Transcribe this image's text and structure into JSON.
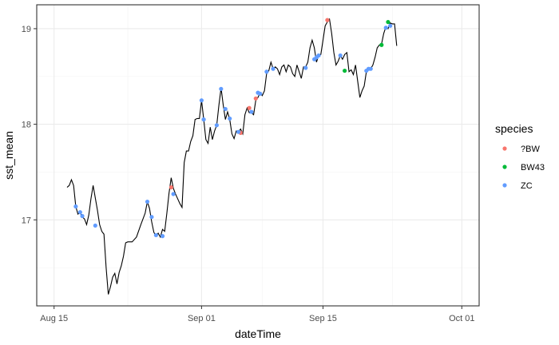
{
  "chart_data": {
    "type": "line",
    "xlabel": "dateTime",
    "ylabel": "sst_mean",
    "x_tick_labels": [
      "Aug 15",
      "Sep 01",
      "Sep 15",
      "Oct 01"
    ],
    "x_ticks": [
      "2023-08-15",
      "2023-09-01",
      "2023-09-15",
      "2023-10-01"
    ],
    "y_ticks": [
      17,
      18,
      19
    ],
    "y_tick_labels": [
      "17",
      "18",
      "19"
    ],
    "xlim": [
      "2023-08-13",
      "2023-10-03"
    ],
    "ylim": [
      16.1,
      19.25
    ],
    "grid": true,
    "legend": {
      "title": "species",
      "position": "right"
    },
    "line_series": {
      "color": "#000000",
      "points": [
        [
          "2023-08-16T12:00",
          17.34
        ],
        [
          "2023-08-16T18:00",
          17.36
        ],
        [
          "2023-08-17T00:00",
          17.42
        ],
        [
          "2023-08-17T06:00",
          17.36
        ],
        [
          "2023-08-17T12:00",
          17.14
        ],
        [
          "2023-08-17T18:00",
          17.06
        ],
        [
          "2023-08-18T00:00",
          17.08
        ],
        [
          "2023-08-18T06:00",
          17.03
        ],
        [
          "2023-08-18T12:00",
          17.01
        ],
        [
          "2023-08-18T18:00",
          16.95
        ],
        [
          "2023-08-19T00:00",
          17.05
        ],
        [
          "2023-08-19T06:00",
          17.22
        ],
        [
          "2023-08-19T12:00",
          17.36
        ],
        [
          "2023-08-19T18:00",
          17.23
        ],
        [
          "2023-08-20T00:00",
          17.1
        ],
        [
          "2023-08-20T06:00",
          16.95
        ],
        [
          "2023-08-20T12:00",
          16.88
        ],
        [
          "2023-08-20T18:00",
          16.85
        ],
        [
          "2023-08-21T00:00",
          16.5
        ],
        [
          "2023-08-21T06:00",
          16.22
        ],
        [
          "2023-08-21T12:00",
          16.3
        ],
        [
          "2023-08-21T18:00",
          16.4
        ],
        [
          "2023-08-22T00:00",
          16.44
        ],
        [
          "2023-08-22T06:00",
          16.33
        ],
        [
          "2023-08-22T12:00",
          16.45
        ],
        [
          "2023-08-22T18:00",
          16.52
        ],
        [
          "2023-08-23T00:00",
          16.62
        ],
        [
          "2023-08-23T06:00",
          16.76
        ],
        [
          "2023-08-23T12:00",
          16.77
        ],
        [
          "2023-08-24T00:00",
          16.77
        ],
        [
          "2023-08-24T12:00",
          16.82
        ],
        [
          "2023-08-25T00:00",
          16.95
        ],
        [
          "2023-08-25T12:00",
          17.07
        ],
        [
          "2023-08-25T18:00",
          17.19
        ],
        [
          "2023-08-26T00:00",
          17.12
        ],
        [
          "2023-08-26T06:00",
          16.98
        ],
        [
          "2023-08-26T12:00",
          16.87
        ],
        [
          "2023-08-26T18:00",
          16.83
        ],
        [
          "2023-08-27T00:00",
          16.86
        ],
        [
          "2023-08-27T06:00",
          16.82
        ],
        [
          "2023-08-27T12:00",
          16.9
        ],
        [
          "2023-08-27T18:00",
          16.88
        ],
        [
          "2023-08-28T00:00",
          17.07
        ],
        [
          "2023-08-28T06:00",
          17.28
        ],
        [
          "2023-08-28T12:00",
          17.44
        ],
        [
          "2023-08-28T18:00",
          17.33
        ],
        [
          "2023-08-29T00:00",
          17.27
        ],
        [
          "2023-08-29T06:00",
          17.22
        ],
        [
          "2023-08-29T12:00",
          17.17
        ],
        [
          "2023-08-29T18:00",
          17.13
        ],
        [
          "2023-08-30T00:00",
          17.6
        ],
        [
          "2023-08-30T06:00",
          17.72
        ],
        [
          "2023-08-30T12:00",
          17.72
        ],
        [
          "2023-08-30T18:00",
          17.82
        ],
        [
          "2023-08-31T00:00",
          17.88
        ],
        [
          "2023-08-31T06:00",
          18.05
        ],
        [
          "2023-08-31T12:00",
          18.06
        ],
        [
          "2023-08-31T18:00",
          18.06
        ],
        [
          "2023-09-01T00:00",
          18.25
        ],
        [
          "2023-09-01T06:00",
          18.05
        ],
        [
          "2023-09-01T12:00",
          17.84
        ],
        [
          "2023-09-01T18:00",
          17.8
        ],
        [
          "2023-09-02T00:00",
          17.97
        ],
        [
          "2023-09-02T06:00",
          17.84
        ],
        [
          "2023-09-02T12:00",
          17.93
        ],
        [
          "2023-09-02T18:00",
          17.99
        ],
        [
          "2023-09-03T00:00",
          18.2
        ],
        [
          "2023-09-03T06:00",
          18.38
        ],
        [
          "2023-09-03T12:00",
          18.2
        ],
        [
          "2023-09-03T18:00",
          18.05
        ],
        [
          "2023-09-04T00:00",
          18.13
        ],
        [
          "2023-09-04T06:00",
          18.05
        ],
        [
          "2023-09-04T12:00",
          17.9
        ],
        [
          "2023-09-04T18:00",
          17.85
        ],
        [
          "2023-09-05T00:00",
          17.93
        ],
        [
          "2023-09-05T06:00",
          17.92
        ],
        [
          "2023-09-05T12:00",
          17.95
        ],
        [
          "2023-09-05T18:00",
          17.9
        ],
        [
          "2023-09-06T00:00",
          18.1
        ],
        [
          "2023-09-06T06:00",
          18.17
        ],
        [
          "2023-09-06T12:00",
          18.12
        ],
        [
          "2023-09-06T18:00",
          18.12
        ],
        [
          "2023-09-07T00:00",
          18.1
        ],
        [
          "2023-09-07T06:00",
          18.25
        ],
        [
          "2023-09-07T12:00",
          18.28
        ],
        [
          "2023-09-07T18:00",
          18.33
        ],
        [
          "2023-09-08T00:00",
          18.3
        ],
        [
          "2023-09-08T06:00",
          18.35
        ],
        [
          "2023-09-08T12:00",
          18.53
        ],
        [
          "2023-09-08T18:00",
          18.56
        ],
        [
          "2023-09-09T00:00",
          18.65
        ],
        [
          "2023-09-09T06:00",
          18.58
        ],
        [
          "2023-09-09T12:00",
          18.6
        ],
        [
          "2023-09-09T18:00",
          18.58
        ],
        [
          "2023-09-10T00:00",
          18.52
        ],
        [
          "2023-09-10T06:00",
          18.6
        ],
        [
          "2023-09-10T12:00",
          18.62
        ],
        [
          "2023-09-10T18:00",
          18.55
        ],
        [
          "2023-09-11T00:00",
          18.62
        ],
        [
          "2023-09-11T06:00",
          18.6
        ],
        [
          "2023-09-11T12:00",
          18.53
        ],
        [
          "2023-09-11T18:00",
          18.5
        ],
        [
          "2023-09-12T00:00",
          18.62
        ],
        [
          "2023-09-12T06:00",
          18.55
        ],
        [
          "2023-09-12T12:00",
          18.48
        ],
        [
          "2023-09-12T18:00",
          18.6
        ],
        [
          "2023-09-13T00:00",
          18.6
        ],
        [
          "2023-09-13T06:00",
          18.65
        ],
        [
          "2023-09-13T12:00",
          18.8
        ],
        [
          "2023-09-13T18:00",
          18.88
        ],
        [
          "2023-09-14T00:00",
          18.8
        ],
        [
          "2023-09-14T06:00",
          18.65
        ],
        [
          "2023-09-14T12:00",
          18.72
        ],
        [
          "2023-09-14T18:00",
          18.73
        ],
        [
          "2023-09-15T00:00",
          18.88
        ],
        [
          "2023-09-15T06:00",
          19.03
        ],
        [
          "2023-09-15T12:00",
          19.07
        ],
        [
          "2023-09-15T18:00",
          19.1
        ],
        [
          "2023-09-16T00:00",
          18.95
        ],
        [
          "2023-09-16T06:00",
          18.75
        ],
        [
          "2023-09-16T12:00",
          18.62
        ],
        [
          "2023-09-16T18:00",
          18.66
        ],
        [
          "2023-09-17T00:00",
          18.72
        ],
        [
          "2023-09-17T06:00",
          18.68
        ],
        [
          "2023-09-17T12:00",
          18.73
        ],
        [
          "2023-09-17T18:00",
          18.75
        ],
        [
          "2023-09-18T00:00",
          18.55
        ],
        [
          "2023-09-18T06:00",
          18.57
        ],
        [
          "2023-09-18T12:00",
          18.52
        ],
        [
          "2023-09-18T18:00",
          18.62
        ],
        [
          "2023-09-19T00:00",
          18.45
        ],
        [
          "2023-09-19T06:00",
          18.28
        ],
        [
          "2023-09-19T12:00",
          18.35
        ],
        [
          "2023-09-19T18:00",
          18.4
        ],
        [
          "2023-09-20T00:00",
          18.55
        ],
        [
          "2023-09-20T06:00",
          18.58
        ],
        [
          "2023-09-20T12:00",
          18.58
        ],
        [
          "2023-09-20T18:00",
          18.62
        ],
        [
          "2023-09-21T00:00",
          18.7
        ],
        [
          "2023-09-21T06:00",
          18.8
        ],
        [
          "2023-09-21T12:00",
          18.83
        ],
        [
          "2023-09-21T18:00",
          18.84
        ],
        [
          "2023-09-22T00:00",
          18.95
        ],
        [
          "2023-09-22T06:00",
          19.02
        ],
        [
          "2023-09-22T12:00",
          19.0
        ],
        [
          "2023-09-22T18:00",
          19.06
        ],
        [
          "2023-09-23T00:00",
          19.05
        ],
        [
          "2023-09-23T06:00",
          19.05
        ],
        [
          "2023-09-23T12:00",
          18.82
        ]
      ]
    },
    "series": [
      {
        "name": "?BW",
        "color": "#F8766D",
        "points": [
          [
            "2023-08-28T12:00",
            17.34
          ],
          [
            "2023-09-05T12:00",
            17.91
          ],
          [
            "2023-09-06T12:00",
            18.17
          ],
          [
            "2023-09-07T06:00",
            18.27
          ],
          [
            "2023-09-15T12:00",
            19.09
          ]
        ]
      },
      {
        "name": "BW43",
        "color": "#00BA38",
        "points": [
          [
            "2023-09-17T12:00",
            18.56
          ],
          [
            "2023-09-21T18:00",
            18.83
          ],
          [
            "2023-09-22T12:00",
            19.07
          ]
        ]
      },
      {
        "name": "ZC",
        "color": "#619CFF",
        "points": [
          [
            "2023-08-17T12:00",
            17.14
          ],
          [
            "2023-08-18T00:00",
            17.08
          ],
          [
            "2023-08-18T06:00",
            17.04
          ],
          [
            "2023-08-19T18:00",
            16.94
          ],
          [
            "2023-08-25T18:00",
            17.19
          ],
          [
            "2023-08-26T06:00",
            17.03
          ],
          [
            "2023-08-26T18:00",
            16.84
          ],
          [
            "2023-08-27T12:00",
            16.83
          ],
          [
            "2023-08-28T18:00",
            17.27
          ],
          [
            "2023-09-01T00:00",
            18.25
          ],
          [
            "2023-09-01T06:00",
            18.05
          ],
          [
            "2023-09-02T18:00",
            17.99
          ],
          [
            "2023-09-03T06:00",
            18.37
          ],
          [
            "2023-09-03T18:00",
            18.16
          ],
          [
            "2023-09-04T06:00",
            18.06
          ],
          [
            "2023-09-05T06:00",
            17.92
          ],
          [
            "2023-09-06T18:00",
            18.13
          ],
          [
            "2023-09-07T12:00",
            18.33
          ],
          [
            "2023-09-07T18:00",
            18.32
          ],
          [
            "2023-09-08T12:00",
            18.55
          ],
          [
            "2023-09-09T06:00",
            18.58
          ],
          [
            "2023-09-13T00:00",
            18.59
          ],
          [
            "2023-09-14T00:00",
            18.68
          ],
          [
            "2023-09-14T06:00",
            18.7
          ],
          [
            "2023-09-14T12:00",
            18.72
          ],
          [
            "2023-09-17T00:00",
            18.72
          ],
          [
            "2023-09-20T00:00",
            18.56
          ],
          [
            "2023-09-20T06:00",
            18.58
          ],
          [
            "2023-09-20T12:00",
            18.58
          ],
          [
            "2023-09-22T06:00",
            19.01
          ],
          [
            "2023-09-22T18:00",
            19.03
          ]
        ]
      }
    ]
  }
}
